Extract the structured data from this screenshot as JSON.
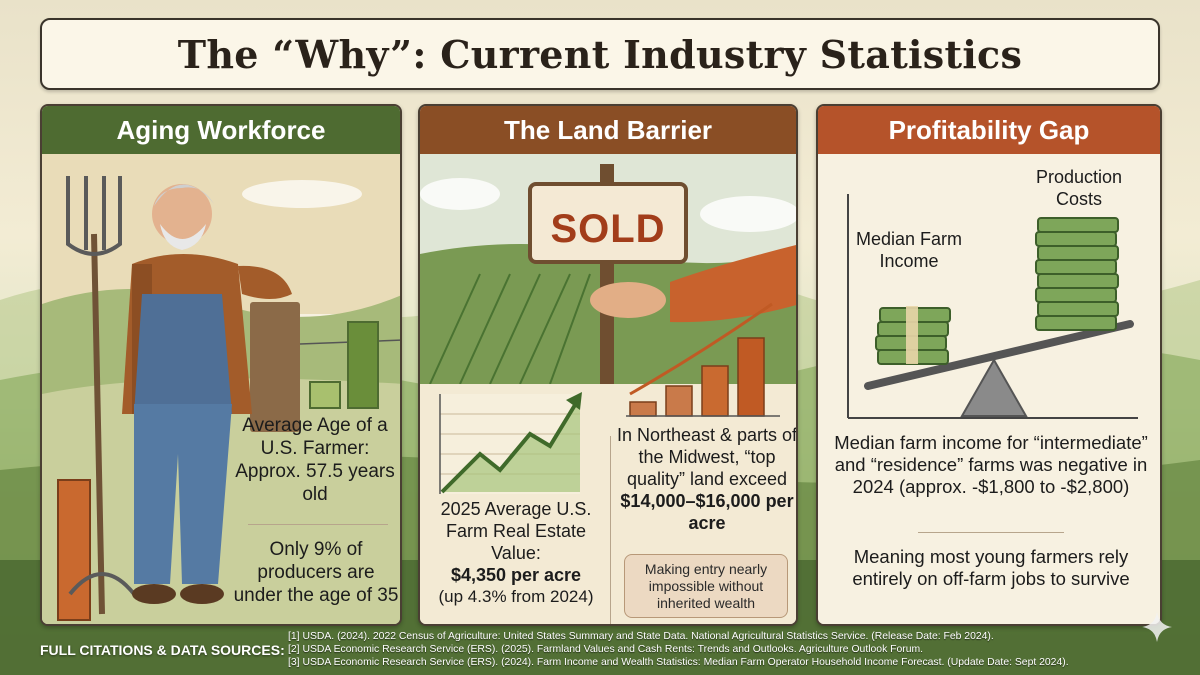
{
  "title": "The “Why”: Current Industry Statistics",
  "panels": {
    "aging": {
      "heading": "Aging Workforce",
      "stat1": "Average Age of a U.S. Farmer: Approx. 57.5 years old",
      "stat2": "Only 9% of producers are under the age of 35"
    },
    "land": {
      "heading": "The Land Barrier",
      "sign": "SOLD",
      "stat_left": "2025 Average U.S. Farm Real Estate Value:",
      "stat_left_value": "$4,350 per acre",
      "stat_left_change": "(up 4.3% from 2024)",
      "stat_right": "In Northeast & parts of the Midwest, “top quality” land exceed",
      "stat_right_value": "$14,000–$16,000 per acre",
      "note": "Making entry nearly impossible without inherited wealth"
    },
    "profit": {
      "heading": "Profitability Gap",
      "label_income": "Median Farm Income",
      "label_costs": "Production Costs",
      "stat1": "Median farm income for “intermediate” and “residence” farms was negative in 2024 (approx. -$1,800 to -$2,800)",
      "stat2": "Meaning most young farmers rely entirely on off-farm jobs to survive"
    }
  },
  "citations": {
    "label": "FULL CITATIONS & DATA SOURCES:",
    "items": [
      "[1] USDA. (2024). 2022 Census of Agriculture: United States Summary and State Data. National Agricultural Statistics Service. (Release Date: Feb 2024).",
      "[2] USDA Economic Research Service (ERS). (2025). Farmland Values and Cash Rents: Trends and Outlooks. Agriculture Outlook Forum.",
      "[3] USDA Economic Research Service (ERS). (2024). Farm Income and Wealth Statistics: Median Farm Operator Household Income Forecast. (Update Date: Sept 2024)."
    ]
  },
  "colors": {
    "aging_header": "#4e6b31",
    "land_header": "#8a4e25",
    "profit_header": "#b5532a"
  },
  "icons": [
    "farmer-illustration",
    "sold-sign-icon",
    "rising-chart-icon",
    "seesaw-money-icon",
    "sparkle-icon"
  ]
}
